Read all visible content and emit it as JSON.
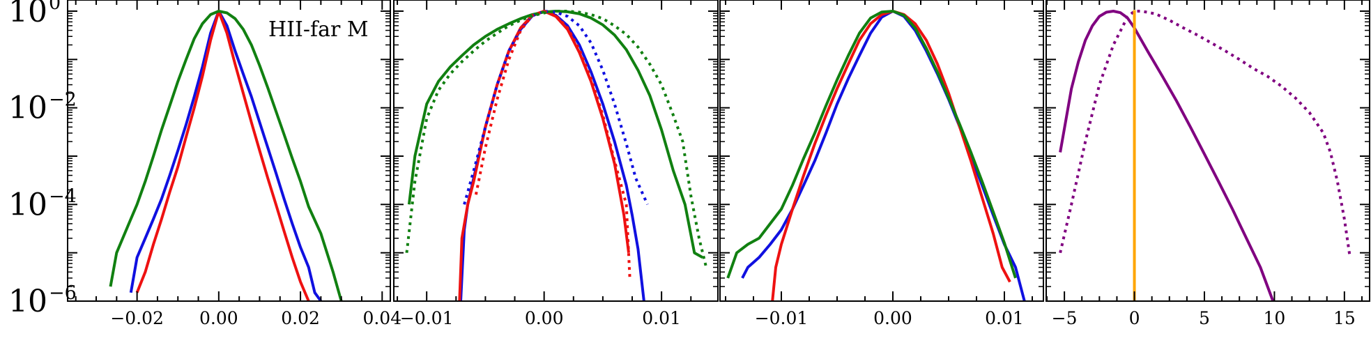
{
  "chart_data": {
    "type": "line",
    "y_scale": "log",
    "annotation": "HII-far M",
    "y_ticks": [
      {
        "value": 1.0,
        "base": "10",
        "exp": "0"
      },
      {
        "value": 0.01,
        "base": "10",
        "exp": "−2"
      },
      {
        "value": 0.0001,
        "base": "10",
        "exp": "−4"
      },
      {
        "value": 1e-06,
        "base": "10",
        "exp": "−6"
      }
    ],
    "ylim": [
      1e-06,
      1.7
    ],
    "colors": {
      "blue": "#1010e0",
      "red": "#ee1111",
      "green": "#118011",
      "purple": "#800080",
      "orange": "#ffa500"
    },
    "panels": [
      {
        "xlim": [
          -0.037,
          0.042
        ],
        "x_ticks": [
          {
            "value": -0.02,
            "label": "−0.02"
          },
          {
            "value": 0.0,
            "label": "0.00"
          },
          {
            "value": 0.02,
            "label": "0.02"
          },
          {
            "value": 0.04,
            "label": "0.04"
          }
        ],
        "series": [
          {
            "color": "blue",
            "style": "solid",
            "x": [
              -0.0215,
              -0.02,
              -0.018,
              -0.016,
              -0.014,
              -0.012,
              -0.01,
              -0.008,
              -0.006,
              -0.004,
              -0.002,
              0.0,
              0.002,
              0.004,
              0.006,
              0.008,
              0.01,
              0.012,
              0.014,
              0.016,
              0.018,
              0.02,
              0.022,
              0.0235,
              0.025
            ],
            "y": [
              1.5e-06,
              8e-06,
              2e-05,
              5e-05,
              0.00013,
              0.0004,
              0.0013,
              0.0045,
              0.017,
              0.07,
              0.35,
              1.0,
              0.5,
              0.15,
              0.05,
              0.017,
              0.005,
              0.0015,
              0.00045,
              0.00013,
              4e-05,
              1.3e-05,
              5e-06,
              1.5e-06,
              1e-06
            ]
          },
          {
            "color": "red",
            "style": "solid",
            "x": [
              -0.02,
              -0.018,
              -0.016,
              -0.014,
              -0.012,
              -0.01,
              -0.008,
              -0.006,
              -0.004,
              -0.002,
              0.0,
              0.002,
              0.004,
              0.006,
              0.008,
              0.01,
              0.012,
              0.014,
              0.016,
              0.018,
              0.02,
              0.022
            ],
            "y": [
              1.5e-06,
              4e-06,
              1.5e-05,
              5e-05,
              0.00018,
              0.0006,
              0.0025,
              0.01,
              0.045,
              0.25,
              1.0,
              0.35,
              0.08,
              0.02,
              0.005,
              0.0013,
              0.00035,
              0.0001,
              2.8e-05,
              8e-06,
              2.5e-06,
              1e-06
            ]
          },
          {
            "color": "green",
            "style": "solid",
            "x": [
              -0.0265,
              -0.025,
              -0.022,
              -0.02,
              -0.018,
              -0.016,
              -0.014,
              -0.012,
              -0.01,
              -0.008,
              -0.006,
              -0.004,
              -0.002,
              0.0,
              0.002,
              0.004,
              0.006,
              0.008,
              0.01,
              0.012,
              0.014,
              0.016,
              0.018,
              0.02,
              0.022,
              0.025,
              0.028,
              0.03
            ],
            "y": [
              2e-06,
              1e-05,
              4e-05,
              0.0001,
              0.0003,
              0.001,
              0.0035,
              0.011,
              0.035,
              0.1,
              0.27,
              0.55,
              0.85,
              1.0,
              0.92,
              0.7,
              0.42,
              0.2,
              0.075,
              0.026,
              0.0085,
              0.0028,
              0.0009,
              0.0003,
              9e-05,
              2.5e-05,
              4e-06,
              1e-06
            ]
          }
        ]
      },
      {
        "xlim": [
          -0.0128,
          0.0148
        ],
        "x_ticks": [
          {
            "value": -0.01,
            "label": "−0.01"
          },
          {
            "value": 0.0,
            "label": "0.00"
          },
          {
            "value": 0.01,
            "label": "0.01"
          }
        ],
        "series": [
          {
            "color": "blue",
            "style": "solid",
            "x": [
              -0.0071,
              -0.0068,
              -0.0065,
              -0.006,
              -0.005,
              -0.004,
              -0.003,
              -0.002,
              -0.001,
              0.0,
              0.001,
              0.002,
              0.003,
              0.004,
              0.005,
              0.006,
              0.007,
              0.0075,
              0.008,
              0.0085
            ],
            "y": [
              1e-06,
              3e-05,
              0.0001,
              0.00035,
              0.004,
              0.03,
              0.15,
              0.42,
              0.8,
              1.0,
              0.82,
              0.5,
              0.2,
              0.055,
              0.012,
              0.002,
              0.00025,
              6e-05,
              1.2e-05,
              1e-06
            ]
          },
          {
            "color": "red",
            "style": "solid",
            "x": [
              -0.0072,
              -0.007,
              -0.0065,
              -0.006,
              -0.005,
              -0.004,
              -0.003,
              -0.002,
              -0.001,
              0.0,
              0.001,
              0.002,
              0.003,
              0.004,
              0.005,
              0.006,
              0.0068,
              0.0072
            ],
            "y": [
              1e-06,
              2e-05,
              0.0001,
              0.0003,
              0.004,
              0.03,
              0.15,
              0.45,
              0.82,
              1.0,
              0.78,
              0.42,
              0.14,
              0.035,
              0.006,
              0.0007,
              6e-05,
              1e-05
            ]
          },
          {
            "color": "green",
            "style": "solid",
            "x": [
              -0.0115,
              -0.011,
              -0.01,
              -0.009,
              -0.008,
              -0.007,
              -0.006,
              -0.005,
              -0.004,
              -0.003,
              -0.002,
              -0.001,
              0.0,
              0.001,
              0.002,
              0.003,
              0.004,
              0.005,
              0.006,
              0.007,
              0.008,
              0.009,
              0.01,
              0.011,
              0.012,
              0.0128,
              0.0135
            ],
            "y": [
              0.0001,
              0.001,
              0.012,
              0.035,
              0.07,
              0.12,
              0.2,
              0.3,
              0.42,
              0.55,
              0.7,
              0.85,
              0.96,
              1.0,
              0.97,
              0.88,
              0.72,
              0.52,
              0.32,
              0.16,
              0.06,
              0.018,
              0.0035,
              0.0005,
              0.0001,
              1e-05,
              8e-06
            ]
          },
          {
            "color": "blue",
            "style": "dotted",
            "x": [
              -0.0068,
              -0.006,
              -0.005,
              -0.004,
              -0.003,
              -0.002,
              -0.001,
              0.0,
              0.001,
              0.002,
              0.003,
              0.004,
              0.005,
              0.006,
              0.007,
              0.0078,
              0.0088
            ],
            "y": [
              0.0001,
              0.0005,
              0.004,
              0.03,
              0.15,
              0.42,
              0.8,
              1.0,
              0.95,
              0.78,
              0.5,
              0.22,
              0.06,
              0.012,
              0.0018,
              0.00035,
              0.0001
            ]
          },
          {
            "color": "red",
            "style": "dotted",
            "x": [
              -0.0058,
              -0.005,
              -0.004,
              -0.003,
              -0.002,
              -0.001,
              0.0,
              0.001,
              0.002,
              0.003,
              0.004,
              0.005,
              0.006,
              0.007,
              0.0073
            ],
            "y": [
              0.00016,
              0.0015,
              0.015,
              0.1,
              0.4,
              0.82,
              1.0,
              0.8,
              0.45,
              0.16,
              0.04,
              0.007,
              0.0008,
              0.0001,
              3e-06
            ]
          },
          {
            "color": "green",
            "style": "dotted",
            "x": [
              -0.0117,
              -0.011,
              -0.01,
              -0.009,
              -0.008,
              -0.007,
              -0.006,
              -0.005,
              -0.004,
              -0.003,
              -0.002,
              -0.001,
              0.0,
              0.001,
              0.002,
              0.003,
              0.004,
              0.005,
              0.006,
              0.007,
              0.008,
              0.009,
              0.01,
              0.011,
              0.0118,
              0.0125,
              0.0132,
              0.0138
            ],
            "y": [
              1e-05,
              0.0003,
              0.006,
              0.023,
              0.05,
              0.09,
              0.15,
              0.24,
              0.35,
              0.5,
              0.65,
              0.8,
              0.92,
              1.0,
              1.0,
              0.95,
              0.85,
              0.7,
              0.5,
              0.33,
              0.18,
              0.08,
              0.03,
              0.007,
              0.002,
              0.00015,
              2e-05,
              5e-06
            ]
          }
        ]
      },
      {
        "xlim": [
          -0.0155,
          0.0135
        ],
        "x_ticks": [
          {
            "value": -0.01,
            "label": "−0.01"
          },
          {
            "value": 0.0,
            "label": "0.00"
          },
          {
            "value": 0.01,
            "label": "0.01"
          }
        ],
        "series": [
          {
            "color": "blue",
            "style": "solid",
            "x": [
              -0.0135,
              -0.013,
              -0.012,
              -0.011,
              -0.01,
              -0.009,
              -0.008,
              -0.007,
              -0.006,
              -0.005,
              -0.004,
              -0.003,
              -0.002,
              -0.001,
              0.0,
              0.001,
              0.002,
              0.003,
              0.004,
              0.005,
              0.006,
              0.007,
              0.008,
              0.009,
              0.01,
              0.011,
              0.0118
            ],
            "y": [
              3e-06,
              5e-06,
              8e-06,
              1.5e-05,
              3e-05,
              8e-05,
              0.00025,
              0.0008,
              0.003,
              0.012,
              0.04,
              0.12,
              0.35,
              0.75,
              1.0,
              0.78,
              0.4,
              0.15,
              0.05,
              0.015,
              0.004,
              0.001,
              0.00025,
              6e-05,
              1.5e-05,
              5e-06,
              1e-06
            ]
          },
          {
            "color": "red",
            "style": "solid",
            "x": [
              -0.0108,
              -0.0105,
              -0.01,
              -0.009,
              -0.008,
              -0.007,
              -0.006,
              -0.005,
              -0.004,
              -0.003,
              -0.002,
              -0.001,
              0.0,
              0.001,
              0.002,
              0.003,
              0.004,
              0.005,
              0.006,
              0.007,
              0.008,
              0.009,
              0.0098,
              0.0105
            ],
            "y": [
              1e-06,
              5e-06,
              1.5e-05,
              8e-05,
              0.0004,
              0.0018,
              0.007,
              0.025,
              0.08,
              0.25,
              0.55,
              0.85,
              1.0,
              0.85,
              0.55,
              0.25,
              0.08,
              0.02,
              0.004,
              0.0008,
              0.00014,
              2.5e-05,
              5e-06,
              2.5e-06
            ]
          },
          {
            "color": "green",
            "style": "solid",
            "x": [
              -0.0148,
              -0.014,
              -0.013,
              -0.012,
              -0.011,
              -0.01,
              -0.009,
              -0.008,
              -0.007,
              -0.006,
              -0.005,
              -0.004,
              -0.003,
              -0.002,
              -0.001,
              0.0,
              0.001,
              0.002,
              0.003,
              0.004,
              0.005,
              0.006,
              0.007,
              0.008,
              0.009,
              0.01,
              0.011
            ],
            "y": [
              3e-06,
              1e-05,
              1.5e-05,
              2e-05,
              4e-05,
              8e-05,
              0.00025,
              0.0009,
              0.003,
              0.011,
              0.038,
              0.12,
              0.35,
              0.72,
              0.96,
              1.0,
              0.82,
              0.45,
              0.17,
              0.055,
              0.016,
              0.0045,
              0.0012,
              0.0003,
              7e-05,
              1.6e-05,
              3e-06
            ]
          }
        ]
      },
      {
        "xlim": [
          -6.3,
          16.8
        ],
        "x_ticks": [
          {
            "value": -5,
            "label": "−5"
          },
          {
            "value": 0,
            "label": "0"
          },
          {
            "value": 5,
            "label": "5"
          },
          {
            "value": 10,
            "label": "10"
          },
          {
            "value": 15,
            "label": "15"
          }
        ],
        "series": [
          {
            "color": "purple",
            "style": "solid",
            "x": [
              -5.3,
              -4.5,
              -4,
              -3.5,
              -3,
              -2.5,
              -2,
              -1.5,
              -1,
              -0.5,
              0,
              0.5,
              1,
              2,
              3,
              4,
              5,
              6,
              7,
              8,
              9,
              9.9
            ],
            "y": [
              0.0012,
              0.025,
              0.09,
              0.25,
              0.5,
              0.78,
              0.95,
              1.0,
              0.93,
              0.73,
              0.45,
              0.25,
              0.14,
              0.045,
              0.014,
              0.004,
              0.0011,
              0.0003,
              8e-05,
              2e-05,
              5e-06,
              1e-06
            ]
          },
          {
            "color": "purple",
            "style": "dotted",
            "x": [
              -5.3,
              -4.5,
              -3.5,
              -2.5,
              -1.5,
              -0.5,
              0,
              0.5,
              1.5,
              2.5,
              3.5,
              4.5,
              5.5,
              6.5,
              7.5,
              8.5,
              9.5,
              10.5,
              11.5,
              12.5,
              13.5,
              14,
              14.5,
              15,
              15.4
            ],
            "y": [
              1e-05,
              0.0001,
              0.002,
              0.03,
              0.2,
              0.75,
              1.0,
              1.0,
              0.88,
              0.65,
              0.45,
              0.32,
              0.22,
              0.15,
              0.1,
              0.065,
              0.045,
              0.028,
              0.016,
              0.008,
              0.003,
              0.0012,
              0.0003,
              5e-05,
              8e-06
            ]
          },
          {
            "color": "orange",
            "style": "solid",
            "vertical_x": 0.0
          }
        ]
      }
    ]
  }
}
